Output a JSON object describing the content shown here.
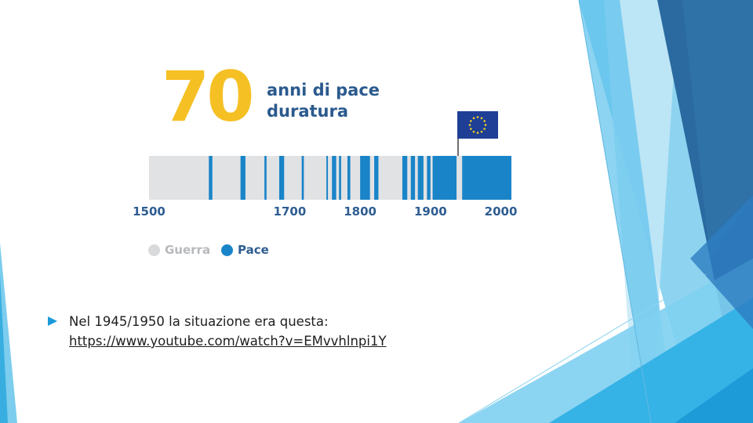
{
  "infographic": {
    "number": "70",
    "headline_line1": "anni di pace",
    "headline_line2": "duratura",
    "tick_labels": [
      "1500",
      "1700",
      "1800",
      "1900",
      "2000"
    ],
    "tick_years": [
      1500,
      1700,
      1800,
      1900,
      2000
    ],
    "year_range": [
      1500,
      2015
    ],
    "legend": [
      {
        "label": "Guerra",
        "dot_color": "#d9dadb",
        "text_color": "#b7b9bc"
      },
      {
        "label": "Pace",
        "dot_color": "#1a84c8",
        "text_color": "#2e5d91"
      }
    ],
    "colors": {
      "war": "#e1e2e4",
      "peace": "#1a84c8",
      "number": "#f5c023",
      "headline": "#2b5a8e",
      "ticks": "#2e5d91"
    },
    "peace_periods": [
      [
        1585,
        1590
      ],
      [
        1630,
        1637
      ],
      [
        1664,
        1667
      ],
      [
        1685,
        1692
      ],
      [
        1717,
        1720
      ],
      [
        1752,
        1754
      ],
      [
        1760,
        1766
      ],
      [
        1770,
        1773
      ],
      [
        1782,
        1786
      ],
      [
        1800,
        1814
      ],
      [
        1820,
        1826
      ],
      [
        1860,
        1867
      ],
      [
        1872,
        1878
      ],
      [
        1882,
        1890
      ],
      [
        1895,
        1900
      ],
      [
        1903,
        1937
      ],
      [
        1945,
        2015
      ]
    ],
    "flag_icon": "eu-flag-icon"
  },
  "bullet": {
    "icon": "triangle-bullet-icon",
    "text": "Nel 1945/1950 la situazione era questa:",
    "link": "https://www.youtube.com/watch?v=EMvvhlnpi1Y"
  }
}
